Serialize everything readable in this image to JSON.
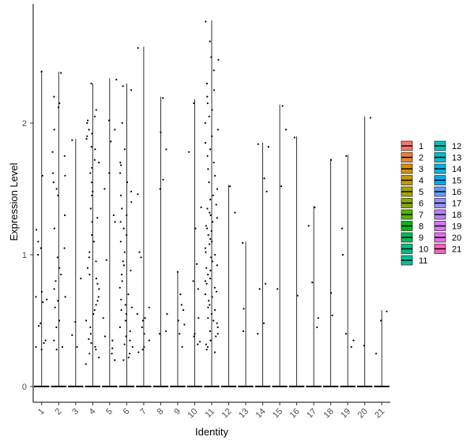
{
  "chart_data": {
    "type": "violin",
    "title": "",
    "xlabel": "Identity",
    "ylabel": "Expression Level",
    "ylim": [
      -0.12,
      2.9
    ],
    "y_ticks": [
      0,
      1,
      2
    ],
    "categories": [
      "1",
      "2",
      "3",
      "4",
      "5",
      "6",
      "7",
      "8",
      "9",
      "10",
      "11",
      "12",
      "13",
      "14",
      "15",
      "16",
      "17",
      "18",
      "19",
      "20",
      "21"
    ],
    "series": [
      {
        "name": "1",
        "color": "#F8766D",
        "max": 2.4,
        "points": [
          2.39,
          1.6,
          1.19,
          1.1,
          1.05,
          0.72,
          0.68,
          0.66,
          0.64,
          0.48,
          0.46,
          0.35,
          0.33,
          0.3,
          0.28,
          1.0
        ]
      },
      {
        "name": "2",
        "color": "#EB8335",
        "max": 2.39,
        "points": [
          2.38,
          2.2,
          2.15,
          2.12,
          1.95,
          1.78,
          1.75,
          1.6,
          1.55,
          1.45,
          1.3,
          1.2,
          0.98,
          0.9,
          0.85,
          0.8,
          0.74,
          0.68,
          0.65,
          0.6,
          0.5,
          0.45,
          0.35,
          0.3,
          0.28,
          1.5,
          1.62,
          1.05
        ]
      },
      {
        "name": "3",
        "color": "#DA8F00",
        "max": 1.88,
        "points": [
          1.87,
          0.82,
          0.49,
          0.39,
          0.3
        ]
      },
      {
        "name": "4",
        "color": "#C49A00",
        "max": 2.3,
        "points": [
          2.3,
          2.1,
          2.05,
          2.02,
          1.95,
          1.92,
          1.9,
          1.88,
          1.82,
          1.8,
          1.72,
          1.7,
          1.62,
          1.55,
          1.48,
          1.45,
          1.28,
          1.25,
          1.15,
          1.02,
          0.98,
          0.95,
          0.9,
          0.85,
          0.82,
          0.78,
          0.74,
          0.68,
          0.65,
          0.62,
          0.58,
          0.55,
          0.5,
          0.45,
          0.4,
          0.36,
          0.33,
          0.3,
          0.28,
          0.25,
          0.22,
          0.17,
          1.35,
          1.1,
          1.66,
          2.0
        ]
      },
      {
        "name": "5",
        "color": "#A9A400",
        "max": 2.34,
        "points": [
          2.33,
          2.02,
          1.95,
          1.86,
          1.62,
          1.5,
          1.3,
          1.25,
          0.96,
          0.52,
          0.38,
          0.35,
          0.29,
          0.25,
          0.2
        ]
      },
      {
        "name": "6",
        "color": "#86AC00",
        "max": 2.3,
        "points": [
          2.28,
          2.25,
          2.0,
          1.7,
          1.68,
          1.62,
          1.55,
          1.48,
          1.4,
          1.35,
          1.3,
          1.25,
          1.2,
          1.15,
          1.1,
          1.02,
          0.95,
          0.92,
          0.88,
          0.85,
          0.8,
          0.75,
          0.7,
          0.66,
          0.62,
          0.58,
          0.55,
          0.5,
          0.45,
          0.42,
          0.38,
          0.35,
          0.32,
          0.3,
          0.25,
          0.22,
          0.2,
          1.8,
          1.45,
          0.6
        ]
      },
      {
        "name": "7",
        "color": "#53B400",
        "max": 2.58,
        "points": [
          2.57,
          1.46,
          1.02,
          0.98,
          0.55,
          0.52,
          0.5,
          0.45,
          0.4,
          0.35,
          0.3,
          0.28,
          0.26,
          0.6
        ]
      },
      {
        "name": "8",
        "color": "#00B81A",
        "max": 2.2,
        "points": [
          2.19,
          1.93,
          1.8,
          1.57,
          1.5,
          0.55,
          0.42,
          0.4
        ]
      },
      {
        "name": "9",
        "color": "#00BC57",
        "max": 0.87,
        "points": [
          0.87,
          0.7,
          0.62,
          0.58,
          0.5,
          0.47,
          0.4,
          0.3
        ]
      },
      {
        "name": "10",
        "color": "#00BE7D",
        "max": 2.18,
        "points": [
          2.15,
          1.78,
          1.36,
          1.2,
          0.93,
          0.8,
          0.74,
          0.52,
          0.4,
          0.38,
          0.34,
          0.32
        ]
      },
      {
        "name": "11",
        "color": "#00C09C",
        "max": 2.78,
        "points": [
          2.77,
          2.62,
          2.5,
          2.48,
          2.4,
          2.3,
          2.25,
          2.2,
          2.15,
          2.1,
          2.05,
          2.0,
          1.95,
          1.9,
          1.85,
          1.8,
          1.75,
          1.7,
          1.65,
          1.6,
          1.55,
          1.5,
          1.45,
          1.42,
          1.38,
          1.35,
          1.32,
          1.3,
          1.28,
          1.25,
          1.22,
          1.2,
          1.18,
          1.15,
          1.12,
          1.1,
          1.08,
          1.05,
          1.02,
          1.0,
          0.98,
          0.95,
          0.92,
          0.9,
          0.88,
          0.85,
          0.82,
          0.8,
          0.78,
          0.75,
          0.72,
          0.7,
          0.68,
          0.65,
          0.62,
          0.6,
          0.58,
          0.55,
          0.52,
          0.5,
          0.48,
          0.45,
          0.42,
          0.4,
          0.38,
          0.35,
          0.32,
          0.3,
          0.28,
          0.26
        ]
      },
      {
        "name": "12",
        "color": "#00C0B8",
        "max": 1.53,
        "points": [
          1.52,
          1.32
        ]
      },
      {
        "name": "13",
        "color": "#00BDD0",
        "max": 1.1,
        "points": [
          1.09,
          0.59,
          0.42
        ]
      },
      {
        "name": "14",
        "color": "#00B6E4",
        "max": 1.85,
        "points": [
          1.84,
          1.82,
          1.58,
          1.48,
          0.78,
          0.74,
          0.48,
          0.4
        ]
      },
      {
        "name": "15",
        "color": "#00ABF4",
        "max": 2.14,
        "points": [
          2.13,
          1.95,
          1.52,
          0.74
        ]
      },
      {
        "name": "16",
        "color": "#619CFF",
        "max": 1.9,
        "points": [
          1.89,
          0.69
        ]
      },
      {
        "name": "17",
        "color": "#9590FF",
        "max": 1.37,
        "points": [
          1.36,
          1.22,
          0.79,
          0.52,
          0.45
        ]
      },
      {
        "name": "18",
        "color": "#B983FF",
        "max": 1.73,
        "points": [
          1.72,
          0.71,
          0.54
        ]
      },
      {
        "name": "19",
        "color": "#D575FE",
        "max": 1.76,
        "points": [
          1.75,
          1.2,
          1.0,
          0.4,
          0.35,
          0.3
        ]
      },
      {
        "name": "20",
        "color": "#E76BF3",
        "max": 2.05,
        "points": [
          2.04,
          0.31
        ]
      },
      {
        "name": "21",
        "color": "#FF62BC",
        "max": 0.58,
        "points": [
          0.57,
          0.5,
          0.25
        ]
      }
    ],
    "legend": {
      "placement": "right",
      "columns": 2,
      "entries": [
        "1",
        "2",
        "3",
        "4",
        "5",
        "6",
        "7",
        "8",
        "9",
        "10",
        "11",
        "12",
        "13",
        "14",
        "15",
        "16",
        "17",
        "18",
        "19",
        "20",
        "21"
      ]
    },
    "grid": false
  }
}
